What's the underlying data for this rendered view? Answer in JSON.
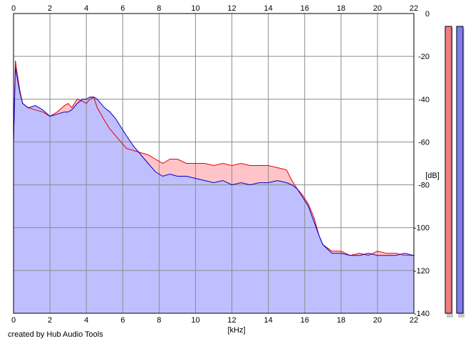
{
  "chart_data": {
    "type": "area",
    "xlabel": "[kHz]",
    "ylabel": "[dB]",
    "xlim": [
      0,
      22
    ],
    "ylim": [
      -140,
      0
    ],
    "x_ticks": [
      "0",
      "2",
      "4",
      "6",
      "8",
      "10",
      "12",
      "14",
      "16",
      "18",
      "20",
      "22"
    ],
    "y_ticks": [
      "0",
      "-20",
      "-40",
      "-60",
      "-80",
      "-100",
      "-120",
      "-140"
    ],
    "grid": true,
    "series": [
      {
        "color": "#e60000",
        "fill": "#ffc4c8",
        "x": [
          0,
          0.1,
          0.2,
          0.35,
          0.5,
          0.8,
          1.2,
          1.6,
          2.0,
          2.4,
          2.8,
          3.0,
          3.2,
          3.5,
          3.8,
          4.0,
          4.2,
          4.4,
          4.6,
          4.8,
          5.0,
          5.3,
          5.6,
          5.9,
          6.2,
          6.6,
          7.0,
          7.4,
          7.8,
          8.2,
          8.6,
          9.0,
          9.5,
          10.0,
          10.5,
          11.0,
          11.5,
          12.0,
          12.5,
          13.0,
          13.5,
          14.0,
          14.5,
          15.0,
          15.3,
          15.6,
          15.9,
          16.2,
          16.5,
          16.8,
          17.0,
          17.5,
          18.0,
          18.5,
          19.0,
          19.5,
          20.0,
          20.5,
          21.0,
          21.5,
          22.0
        ],
        "values": [
          -60,
          -22,
          -28,
          -36,
          -42,
          -44,
          -45,
          -46,
          -48,
          -46,
          -43,
          -42,
          -44,
          -40,
          -41,
          -42,
          -40,
          -39,
          -44,
          -47,
          -50,
          -54,
          -57,
          -60,
          -63,
          -64,
          -65,
          -66,
          -68,
          -70,
          -68,
          -68,
          -70,
          -70,
          -70,
          -71,
          -70,
          -71,
          -70,
          -71,
          -71,
          -71,
          -72,
          -73,
          -78,
          -82,
          -85,
          -89,
          -95,
          -104,
          -108,
          -111,
          -111,
          -113,
          -112,
          -113,
          -111,
          -112,
          -112,
          -113,
          -113
        ]
      },
      {
        "color": "#0000c8",
        "fill": "#bfbfff",
        "x": [
          0,
          0.1,
          0.2,
          0.35,
          0.5,
          0.8,
          1.2,
          1.6,
          2.0,
          2.4,
          2.8,
          3.0,
          3.2,
          3.5,
          3.8,
          4.0,
          4.2,
          4.4,
          4.6,
          4.8,
          5.0,
          5.3,
          5.6,
          5.9,
          6.2,
          6.6,
          7.0,
          7.4,
          7.8,
          8.2,
          8.6,
          9.0,
          9.5,
          10.0,
          10.5,
          11.0,
          11.5,
          12.0,
          12.5,
          13.0,
          13.5,
          14.0,
          14.5,
          15.0,
          15.3,
          15.6,
          15.9,
          16.2,
          16.5,
          16.8,
          17.0,
          17.5,
          18.0,
          18.5,
          19.0,
          19.5,
          20.0,
          20.5,
          21.0,
          21.5,
          22.0
        ],
        "values": [
          -60,
          -25,
          -30,
          -37,
          -42,
          -44,
          -43,
          -45,
          -48,
          -47,
          -46,
          -46,
          -45,
          -42,
          -40,
          -40,
          -39,
          -39,
          -40,
          -42,
          -44,
          -46,
          -49,
          -53,
          -57,
          -62,
          -66,
          -70,
          -74,
          -76,
          -75,
          -76,
          -76,
          -77,
          -78,
          -79,
          -78,
          -80,
          -79,
          -80,
          -79,
          -79,
          -78,
          -79,
          -80,
          -82,
          -86,
          -90,
          -97,
          -104,
          -108,
          -112,
          -112,
          -113,
          -113,
          -112,
          -113,
          -113,
          -113,
          -112,
          -113
        ]
      }
    ],
    "meters": [
      {
        "color": "#f07c82",
        "value": -6
      },
      {
        "color": "#7c7cf0",
        "value": -6
      }
    ]
  },
  "footer": {
    "credit": "created by Hub Audio Tools"
  }
}
